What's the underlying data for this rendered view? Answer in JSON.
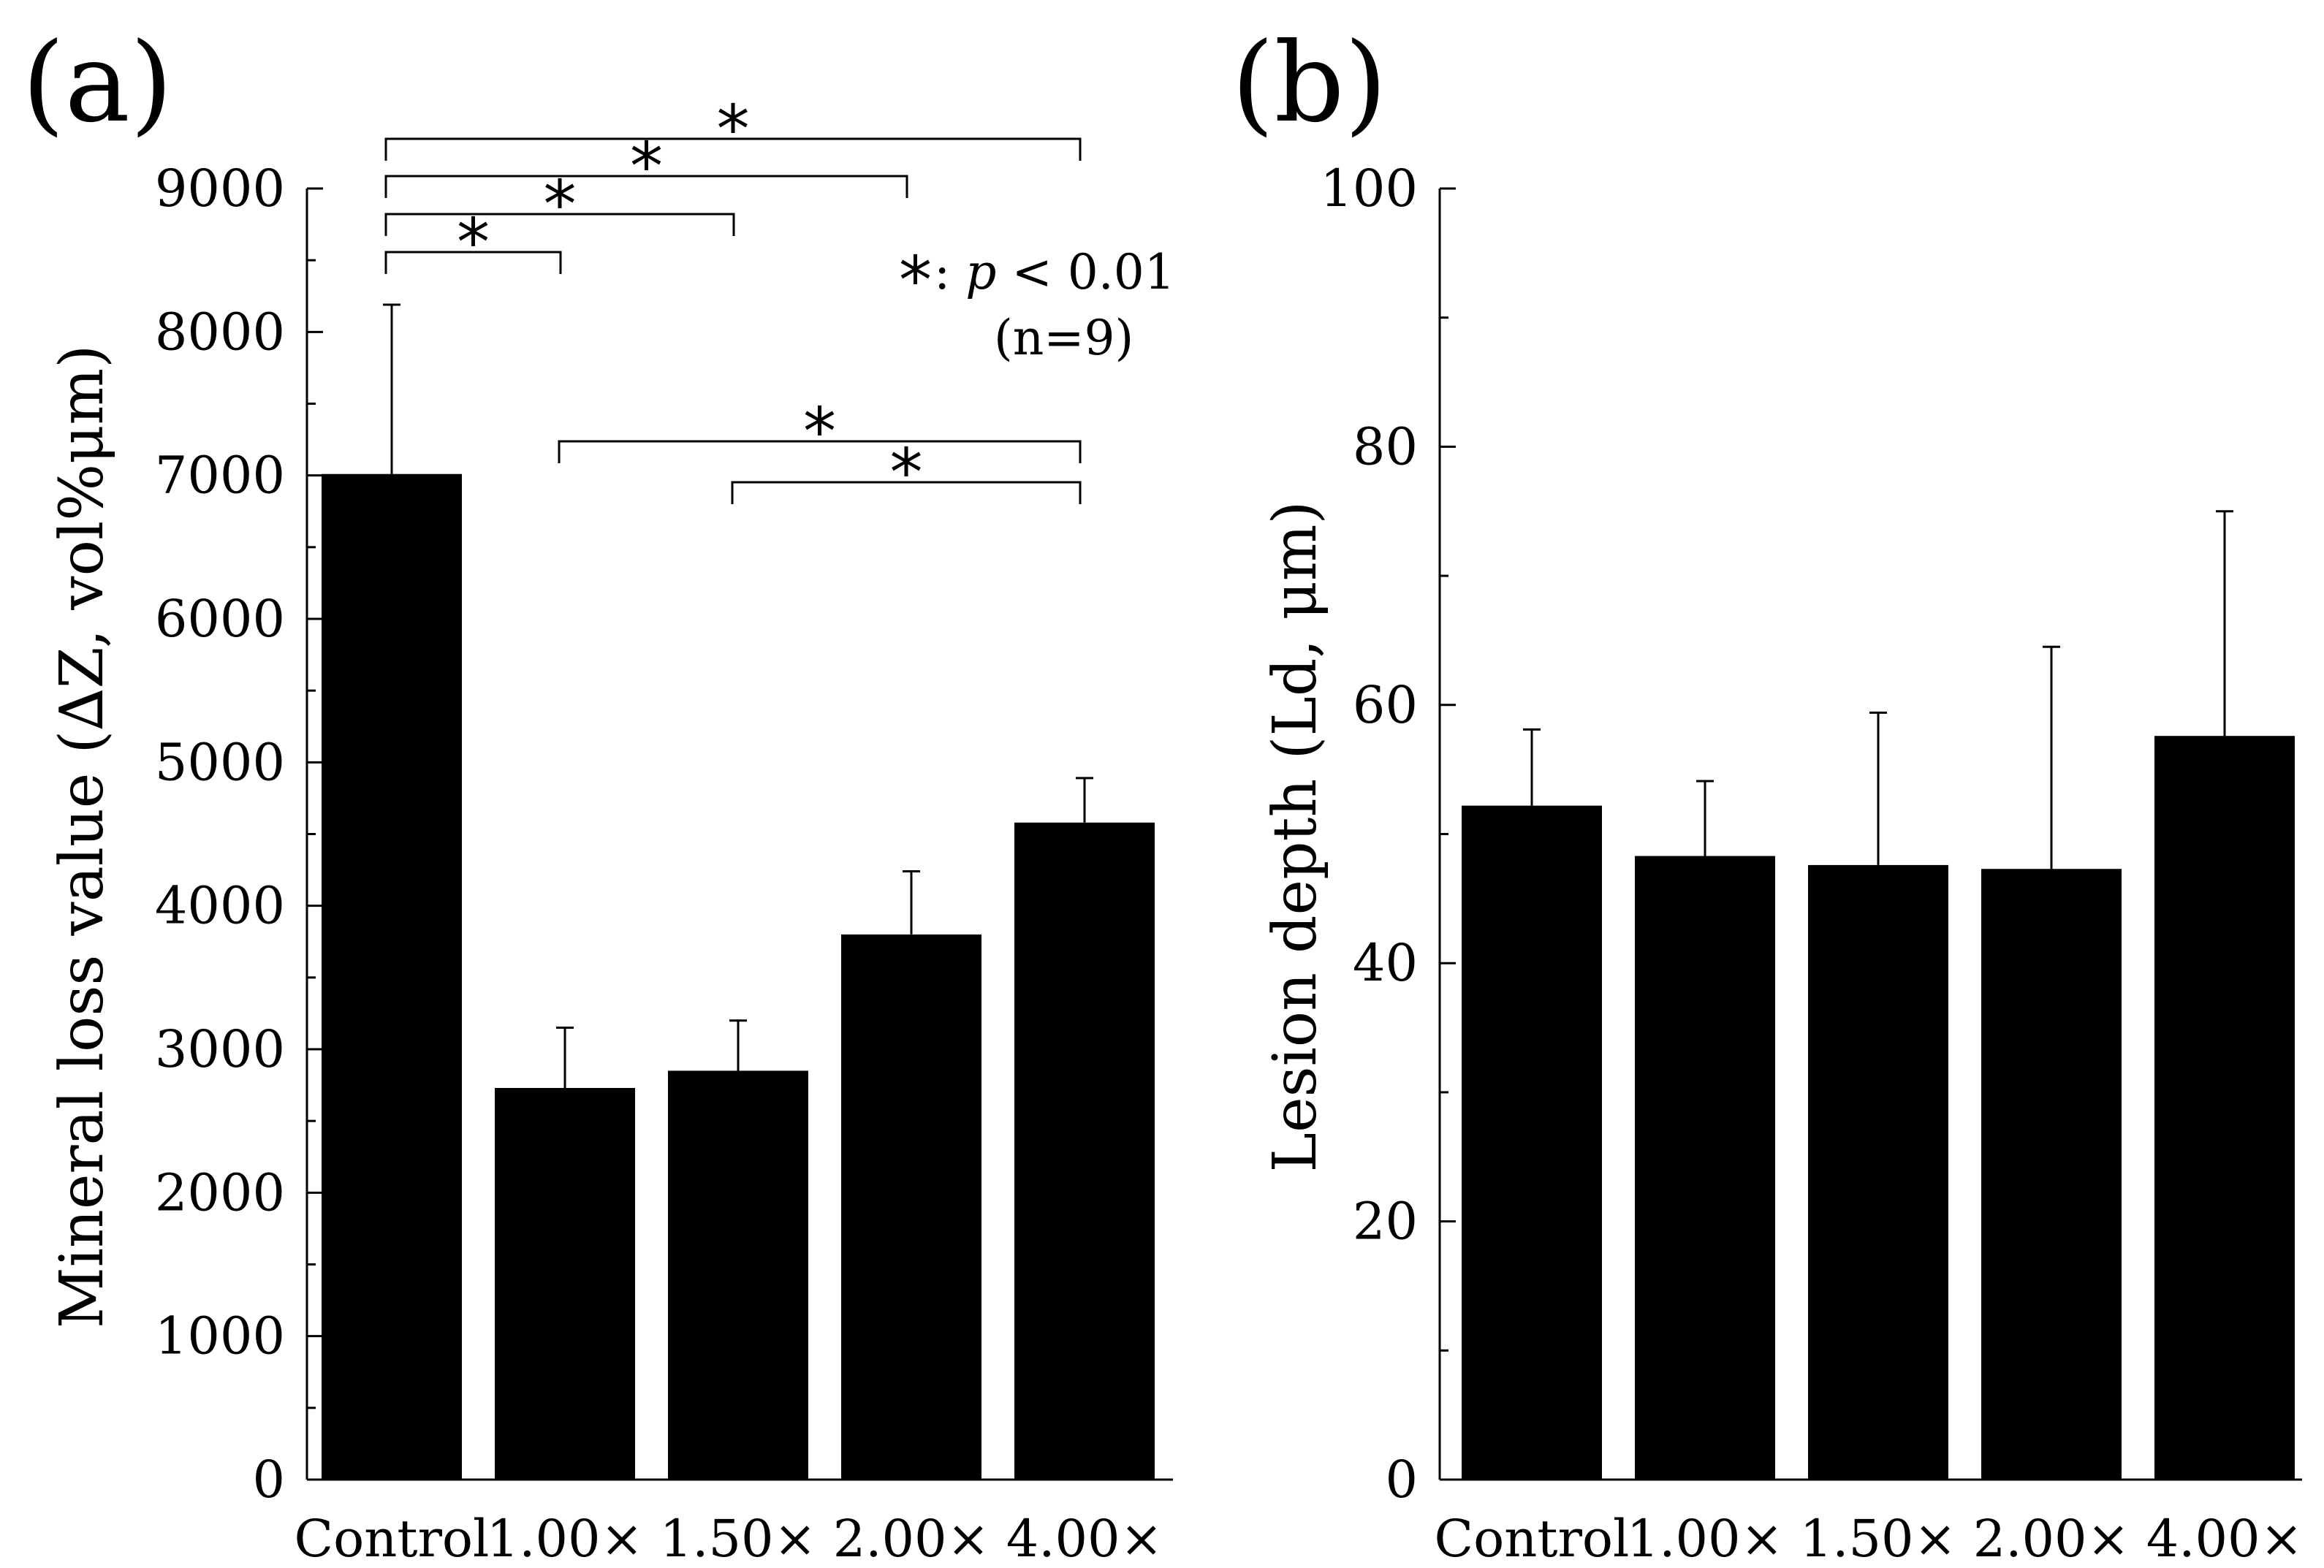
{
  "chart_data": [
    {
      "panel": "(a)",
      "type": "bar",
      "categories": [
        "Control",
        "1.00×",
        "1.50×",
        "2.00×",
        "4.00×"
      ],
      "values": [
        7010,
        2730,
        2850,
        3800,
        4580
      ],
      "error_plus": [
        1180,
        420,
        350,
        440,
        310
      ],
      "ylabel": "Mineral loss value (∆Z, vol%μm)",
      "ylim": [
        0,
        9000
      ],
      "yticks": [
        0,
        1000,
        2000,
        3000,
        4000,
        5000,
        6000,
        7000,
        8000,
        9000
      ],
      "legend": {
        "star": "*",
        "text": ": p < 0.01",
        "n": "(n=9)"
      },
      "significance": [
        {
          "from": 0,
          "to": 1,
          "label": "*"
        },
        {
          "from": 0,
          "to": 2,
          "label": "*"
        },
        {
          "from": 0,
          "to": 3,
          "label": "*"
        },
        {
          "from": 0,
          "to": 4,
          "label": "*"
        },
        {
          "from": 1,
          "to": 4,
          "label": "*"
        },
        {
          "from": 2,
          "to": 4,
          "label": "*"
        }
      ]
    },
    {
      "panel": "(b)",
      "type": "bar",
      "categories": [
        "Control",
        "1.00×",
        "1.50×",
        "2.00×",
        "4.00×"
      ],
      "values": [
        52.2,
        48.3,
        47.6,
        47.3,
        57.6
      ],
      "error_plus": [
        5.9,
        5.8,
        11.8,
        17.2,
        17.4
      ],
      "ylabel": "Lesion depth (Ld, μm)",
      "ylim": [
        0,
        100
      ],
      "yticks": [
        0,
        20,
        40,
        60,
        80,
        100
      ]
    }
  ]
}
